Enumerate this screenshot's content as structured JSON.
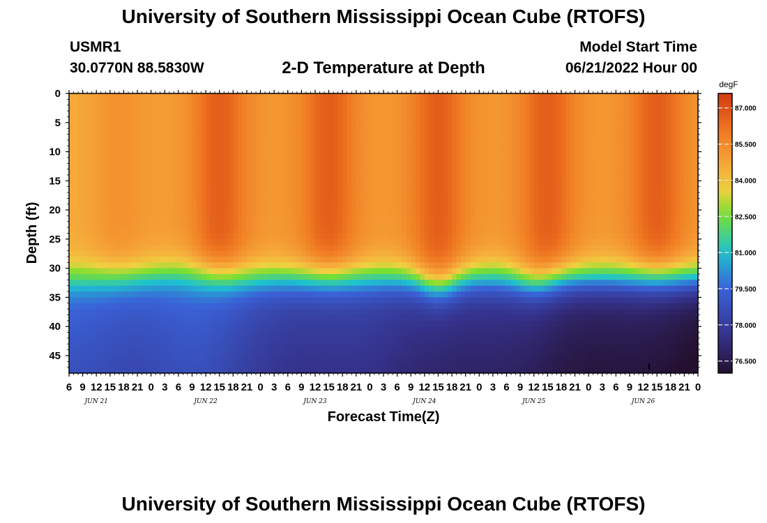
{
  "header": {
    "title": "University of Southern Mississippi Ocean Cube (RTOFS)",
    "station": "USMR1",
    "coordinates": "30.0770N  88.5830W",
    "subtitle": "2-D Temperature at Depth",
    "model_start_label": "Model Start Time",
    "model_start_value": "06/21/2022 Hour 00"
  },
  "footer": {
    "title": "University of Southern Mississippi Ocean Cube (RTOFS)"
  },
  "chart_data": {
    "type": "heatmap",
    "xlabel": "Forecast Time(Z)",
    "ylabel": "Depth (ft)",
    "x_tick_labels": [
      "6",
      "9",
      "12",
      "15",
      "18",
      "21",
      "0",
      "3",
      "6",
      "9",
      "12",
      "15",
      "18",
      "21",
      "0",
      "3",
      "6",
      "9",
      "12",
      "15",
      "18",
      "21",
      "0",
      "3",
      "6",
      "9",
      "12",
      "15",
      "18",
      "21",
      "0",
      "3",
      "6",
      "9",
      "12",
      "15",
      "18",
      "21",
      "0",
      "3",
      "6",
      "9",
      "12",
      "15",
      "18",
      "21",
      "0"
    ],
    "x_start_hour": 6,
    "x_end_hour": 144,
    "date_labels": [
      "JUN 21",
      "JUN 22",
      "JUN 23",
      "JUN 24",
      "JUN 25",
      "JUN 26"
    ],
    "y_ticks": [
      0,
      5,
      10,
      15,
      20,
      25,
      30,
      35,
      40,
      45
    ],
    "y_max_ft": 48,
    "colorbar": {
      "unit": "degF",
      "min": 76.0,
      "max": 87.6,
      "tick_values": [
        87.0,
        85.5,
        84.0,
        82.5,
        81.0,
        79.5,
        78.0,
        76.5
      ],
      "tick_labels": [
        "87.000",
        "85.500",
        "84.000",
        "82.500",
        "81.000",
        "79.500",
        "78.000",
        "76.500"
      ]
    },
    "colors": {
      "warmest": "#d23a10",
      "warm": "#f07a22",
      "mild": "#f6a93a",
      "yellow": "#f0d040",
      "green": "#78e030",
      "cyan": "#1ec2d0",
      "blue": "#3a62d8",
      "indigo": "#35318a",
      "coldest": "#24102e"
    }
  }
}
